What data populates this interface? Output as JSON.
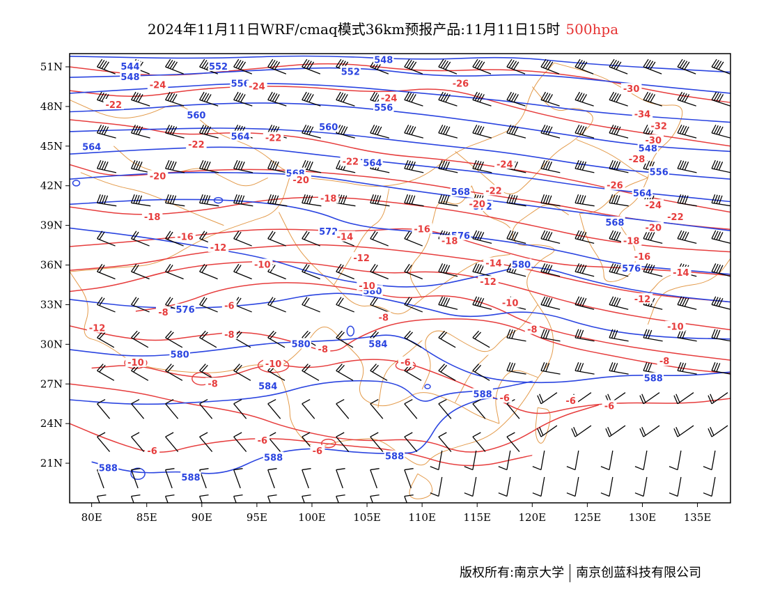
{
  "title": {
    "main": "2024年11月11日WRF/cmaq模式36km预报产品:11月11日15时",
    "level": "500hpa"
  },
  "footer": {
    "copyright": "版权所有:南京大学",
    "company": "南京创蓝科技有限公司"
  },
  "colors": {
    "height_contour": "#2a44e0",
    "temperature_contour": "#e63c3c",
    "border": "#e39a4a",
    "wind_barb": "#000000",
    "title_level": "#e63333"
  },
  "map": {
    "lon_range": [
      78,
      138
    ],
    "lat_range": [
      18,
      52
    ],
    "x_ticks": [
      "80E",
      "85E",
      "90E",
      "95E",
      "100E",
      "105E",
      "110E",
      "115E",
      "120E",
      "125E",
      "130E",
      "135E"
    ],
    "y_ticks": [
      "51N",
      "48N",
      "45N",
      "42N",
      "39N",
      "36N",
      "33N",
      "30N",
      "27N",
      "24N",
      "21N"
    ]
  },
  "height_labels": [
    {
      "text": "544",
      "lon": 83.5,
      "lat": 51.0
    },
    {
      "text": "548",
      "lon": 83.5,
      "lat": 50.2
    },
    {
      "text": "552",
      "lon": 91.5,
      "lat": 51.0
    },
    {
      "text": "548",
      "lon": 106.5,
      "lat": 51.5
    },
    {
      "text": "552",
      "lon": 103.5,
      "lat": 50.6
    },
    {
      "text": "556",
      "lon": 93.5,
      "lat": 49.7
    },
    {
      "text": "560",
      "lon": 89.5,
      "lat": 47.3
    },
    {
      "text": "556",
      "lon": 106.5,
      "lat": 47.9
    },
    {
      "text": "560",
      "lon": 101.5,
      "lat": 46.4
    },
    {
      "text": "564",
      "lon": 80.0,
      "lat": 44.9
    },
    {
      "text": "564",
      "lon": 93.5,
      "lat": 45.7
    },
    {
      "text": "564",
      "lon": 105.5,
      "lat": 43.7
    },
    {
      "text": "568",
      "lon": 98.5,
      "lat": 42.9
    },
    {
      "text": "568",
      "lon": 113.5,
      "lat": 41.5
    },
    {
      "text": "572",
      "lon": 115.5,
      "lat": 40.4
    },
    {
      "text": "572",
      "lon": 101.5,
      "lat": 38.5
    },
    {
      "text": "576",
      "lon": 113.5,
      "lat": 38.2
    },
    {
      "text": "580",
      "lon": 119.0,
      "lat": 36.0
    },
    {
      "text": "580",
      "lon": 105.5,
      "lat": 34.0
    },
    {
      "text": "576",
      "lon": 88.5,
      "lat": 32.6
    },
    {
      "text": "580",
      "lon": 99.0,
      "lat": 30.0
    },
    {
      "text": "584",
      "lon": 106.0,
      "lat": 30.0
    },
    {
      "text": "580",
      "lon": 88.0,
      "lat": 29.2
    },
    {
      "text": "584",
      "lon": 96.0,
      "lat": 26.8
    },
    {
      "text": "588",
      "lon": 115.5,
      "lat": 26.2
    },
    {
      "text": "588",
      "lon": 131.0,
      "lat": 27.4
    },
    {
      "text": "588",
      "lon": 81.5,
      "lat": 20.6
    },
    {
      "text": "588",
      "lon": 89.0,
      "lat": 19.9
    },
    {
      "text": "588",
      "lon": 96.5,
      "lat": 21.4
    },
    {
      "text": "588",
      "lon": 107.5,
      "lat": 21.5
    },
    {
      "text": "564",
      "lon": 130.0,
      "lat": 41.4
    },
    {
      "text": "568",
      "lon": 127.5,
      "lat": 39.2
    },
    {
      "text": "576",
      "lon": 129.0,
      "lat": 35.7
    },
    {
      "text": "556",
      "lon": 131.5,
      "lat": 43.0
    },
    {
      "text": "548",
      "lon": 130.5,
      "lat": 44.8
    }
  ],
  "temp_labels": [
    {
      "text": "-24",
      "lon": 86.0,
      "lat": 49.6
    },
    {
      "text": "-22",
      "lon": 82.0,
      "lat": 48.1
    },
    {
      "text": "-24",
      "lon": 95.0,
      "lat": 49.5
    },
    {
      "text": "-24",
      "lon": 107.0,
      "lat": 48.6
    },
    {
      "text": "-26",
      "lon": 113.5,
      "lat": 49.7
    },
    {
      "text": "-30",
      "lon": 129.0,
      "lat": 49.3
    },
    {
      "text": "-34",
      "lon": 130.0,
      "lat": 47.4
    },
    {
      "text": "-32",
      "lon": 131.5,
      "lat": 46.5
    },
    {
      "text": "-30",
      "lon": 131.0,
      "lat": 45.4
    },
    {
      "text": "-28",
      "lon": 129.5,
      "lat": 44.0
    },
    {
      "text": "-22",
      "lon": 89.5,
      "lat": 45.1
    },
    {
      "text": "-22",
      "lon": 96.5,
      "lat": 45.6
    },
    {
      "text": "-22",
      "lon": 103.5,
      "lat": 43.8
    },
    {
      "text": "-24",
      "lon": 117.5,
      "lat": 43.6
    },
    {
      "text": "-20",
      "lon": 86.0,
      "lat": 42.7
    },
    {
      "text": "-20",
      "lon": 99.0,
      "lat": 42.4
    },
    {
      "text": "-18",
      "lon": 101.5,
      "lat": 41.0
    },
    {
      "text": "-22",
      "lon": 116.5,
      "lat": 41.6
    },
    {
      "text": "-20",
      "lon": 115.0,
      "lat": 40.6
    },
    {
      "text": "-26",
      "lon": 127.5,
      "lat": 42.0
    },
    {
      "text": "-24",
      "lon": 131.0,
      "lat": 40.5
    },
    {
      "text": "-22",
      "lon": 133.0,
      "lat": 39.6
    },
    {
      "text": "-20",
      "lon": 131.0,
      "lat": 38.8
    },
    {
      "text": "-18",
      "lon": 85.5,
      "lat": 39.6
    },
    {
      "text": "-18",
      "lon": 112.5,
      "lat": 37.8
    },
    {
      "text": "-18",
      "lon": 129.0,
      "lat": 37.8
    },
    {
      "text": "-16",
      "lon": 88.5,
      "lat": 38.1
    },
    {
      "text": "-16",
      "lon": 110.0,
      "lat": 38.7
    },
    {
      "text": "-16",
      "lon": 130.0,
      "lat": 36.6
    },
    {
      "text": "-14",
      "lon": 103.0,
      "lat": 38.1
    },
    {
      "text": "-14",
      "lon": 116.5,
      "lat": 36.1
    },
    {
      "text": "-14",
      "lon": 133.5,
      "lat": 35.4
    },
    {
      "text": "-12",
      "lon": 91.5,
      "lat": 37.3
    },
    {
      "text": "-12",
      "lon": 104.5,
      "lat": 36.5
    },
    {
      "text": "-12",
      "lon": 116.0,
      "lat": 34.7
    },
    {
      "text": "-12",
      "lon": 130.0,
      "lat": 33.4
    },
    {
      "text": "-10",
      "lon": 95.5,
      "lat": 36.0
    },
    {
      "text": "-10",
      "lon": 105.0,
      "lat": 34.4
    },
    {
      "text": "-10",
      "lon": 118.0,
      "lat": 33.1
    },
    {
      "text": "-10",
      "lon": 133.0,
      "lat": 31.3
    },
    {
      "text": "-8",
      "lon": 86.5,
      "lat": 32.4
    },
    {
      "text": "-8",
      "lon": 106.5,
      "lat": 32.0
    },
    {
      "text": "-8",
      "lon": 120.0,
      "lat": 31.1
    },
    {
      "text": "-8",
      "lon": 132.0,
      "lat": 28.7
    },
    {
      "text": "-6",
      "lon": 92.5,
      "lat": 32.9
    },
    {
      "text": "-8",
      "lon": 92.5,
      "lat": 30.7
    },
    {
      "text": "-8",
      "lon": 101.0,
      "lat": 29.6
    },
    {
      "text": "-10",
      "lon": 96.5,
      "lat": 28.5
    },
    {
      "text": "-10",
      "lon": 84.0,
      "lat": 28.6
    },
    {
      "text": "-12",
      "lon": 80.5,
      "lat": 31.2
    },
    {
      "text": "-8",
      "lon": 91.0,
      "lat": 27.0
    },
    {
      "text": "-6",
      "lon": 108.5,
      "lat": 28.6
    },
    {
      "text": "-6",
      "lon": 117.5,
      "lat": 25.9
    },
    {
      "text": "-6",
      "lon": 123.5,
      "lat": 25.7
    },
    {
      "text": "-6",
      "lon": 127.0,
      "lat": 25.3
    },
    {
      "text": "-6",
      "lon": 85.5,
      "lat": 21.9
    },
    {
      "text": "-6",
      "lon": 95.5,
      "lat": 22.7
    },
    {
      "text": "-6",
      "lon": 100.5,
      "lat": 21.9
    }
  ]
}
